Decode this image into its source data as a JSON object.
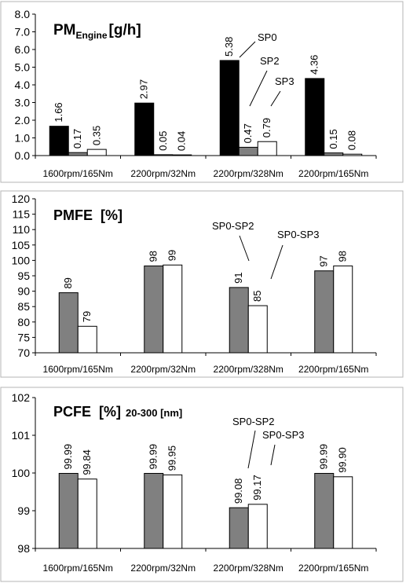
{
  "chart_data": [
    {
      "type": "bar",
      "title_main": "PM",
      "title_sub": "Engine",
      "title_unit": "[g/h]",
      "categories": [
        "1600rpm/165Nm",
        "2200rpm/32Nm",
        "2200rpm/328Nm",
        "2200rpm/165Nm"
      ],
      "series": [
        {
          "name": "SP0",
          "values": [
            1.66,
            2.97,
            5.38,
            4.36
          ],
          "labels": [
            "1.66",
            "2.97",
            "5.38",
            "4.36"
          ],
          "color": "#000000"
        },
        {
          "name": "SP2",
          "values": [
            0.17,
            0.05,
            0.47,
            0.15
          ],
          "labels": [
            "0.17",
            "0.05",
            "0.47",
            "0.15"
          ],
          "color": "#808080"
        },
        {
          "name": "SP3",
          "values": [
            0.35,
            0.04,
            0.79,
            0.08
          ],
          "labels": [
            "0.35",
            "0.04",
            "0.79",
            "0.08"
          ],
          "color": "#ffffff"
        }
      ],
      "yticks": [
        "0.0",
        "1.0",
        "2.0",
        "3.0",
        "4.0",
        "5.0",
        "6.0",
        "7.0",
        "8.0"
      ],
      "ylim": [
        0,
        8
      ],
      "grid": false
    },
    {
      "type": "bar",
      "title": "PMFE  [%]",
      "categories": [
        "1600rpm/165Nm",
        "2200rpm/32Nm",
        "2200rpm/328Nm",
        "2200rpm/165Nm"
      ],
      "series": [
        {
          "name": "SP0-SP2",
          "values": [
            89.5,
            98.2,
            91.2,
            96.6
          ],
          "labels": [
            "89",
            "98",
            "91",
            "97"
          ],
          "color": "#808080"
        },
        {
          "name": "SP0-SP3",
          "values": [
            78.6,
            98.5,
            85.3,
            98.2
          ],
          "labels": [
            "79",
            "99",
            "85",
            "98"
          ],
          "color": "#ffffff"
        }
      ],
      "yticks": [
        "70",
        "75",
        "80",
        "85",
        "90",
        "95",
        "100",
        "105",
        "110",
        "115",
        "120"
      ],
      "ylim": [
        70,
        120
      ],
      "grid": false
    },
    {
      "type": "bar",
      "title": "PCFE  [%]",
      "title_note": "20-300 [nm]",
      "categories": [
        "1600rpm/165Nm",
        "2200rpm/32Nm",
        "2200rpm/328Nm",
        "2200rpm/165Nm"
      ],
      "series": [
        {
          "name": "SP0-SP2",
          "values": [
            99.99,
            99.99,
            99.08,
            99.99
          ],
          "labels": [
            "99.99",
            "99.99",
            "99.08",
            "99.99"
          ],
          "color": "#808080"
        },
        {
          "name": "SP0-SP3",
          "values": [
            99.84,
            99.95,
            99.17,
            99.9
          ],
          "labels": [
            "99.84",
            "99.95",
            "99.17",
            "99.90"
          ],
          "color": "#ffffff"
        }
      ],
      "yticks": [
        "98",
        "99",
        "100",
        "101",
        "102"
      ],
      "ylim": [
        98,
        102
      ],
      "grid": false
    }
  ]
}
